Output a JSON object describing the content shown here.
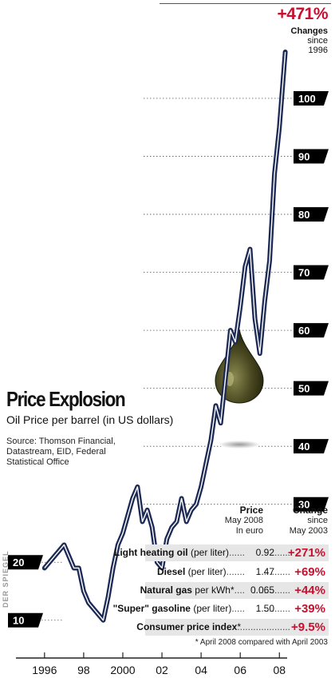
{
  "chart_data": {
    "type": "line",
    "title": "Price Explosion",
    "subtitle": "Oil Price per barrel (in US dollars)",
    "source": "Source: Thomson Financial, Datastream, EID, Federal Statistical Office",
    "x_tick_labels": [
      "1996",
      "98",
      "2000",
      "02",
      "04",
      "06",
      "08"
    ],
    "x_tick_values": [
      1996,
      1998,
      2000,
      2002,
      2004,
      2006,
      2008
    ],
    "xlim": [
      1995.6,
      2008.6
    ],
    "y_tick_values": [
      10,
      20,
      30,
      40,
      50,
      60,
      70,
      80,
      90,
      100
    ],
    "y_tick_labels": [
      "10",
      "20",
      "30",
      "40",
      "50",
      "60",
      "70",
      "80",
      "90",
      "100"
    ],
    "ylim": [
      5,
      112
    ],
    "series": [
      {
        "x": [
          1996.0,
          1996.25,
          1996.5,
          1996.75,
          1997.0,
          1997.25,
          1997.5,
          1997.75,
          1998.0,
          1998.25,
          1998.5,
          1998.75,
          1999.0,
          1999.25,
          1999.5,
          1999.75,
          2000.0,
          2000.25,
          2000.5,
          2000.75,
          2001.0,
          2001.25,
          2001.5,
          2001.75,
          2002.0,
          2002.25,
          2002.5,
          2002.75,
          2003.0,
          2003.25,
          2003.5,
          2003.75,
          2004.0,
          2004.25,
          2004.5,
          2004.75,
          2005.0,
          2005.25,
          2005.5,
          2005.75,
          2006.0,
          2006.25,
          2006.5,
          2006.75,
          2007.0,
          2007.25,
          2007.5,
          2007.75,
          2008.0,
          2008.3
        ],
        "values": [
          19,
          20,
          21,
          22,
          23,
          21,
          19,
          19,
          15,
          13,
          12,
          11,
          10,
          14,
          19,
          23,
          25,
          28,
          31,
          33,
          27,
          29,
          26,
          20,
          19,
          24,
          26,
          27,
          31,
          27,
          29,
          30,
          33,
          37,
          41,
          47,
          44,
          52,
          60,
          58,
          64,
          71,
          74,
          62,
          56,
          65,
          72,
          87,
          95,
          108
        ]
      }
    ],
    "annotation": {
      "value": "+471%",
      "label_bold": "Changes",
      "label_rest": "since 1996"
    }
  },
  "table": {
    "headers": {
      "price": {
        "title": "Price",
        "line1": "May 2008",
        "line2": "In euro"
      },
      "change": {
        "title": "Change",
        "line1": "since",
        "line2": "May 2003"
      }
    },
    "rows": [
      {
        "name": "Light heating oil",
        "unit": " (per liter)",
        "dots": "......",
        "price": "0.92",
        "dots2": "........",
        "change": "+271%"
      },
      {
        "name": "Diesel",
        "unit": " (per liter)",
        "dots": ".......",
        "price": "1.47",
        "dots2": "............",
        "change": "+69%"
      },
      {
        "name": "Natural gas",
        "unit": " per kWh*",
        "dots": "....",
        "price": "0.065",
        "dots2": "..............",
        "change": "+44%"
      },
      {
        "name": "\"Super\" gasoline",
        "unit": " (per liter)",
        "dots": ".....",
        "price": "1.50",
        "dots2": "............",
        "change": "+39%"
      },
      {
        "name": "Consumer price index",
        "unit": "*",
        "dots": "",
        "price": "",
        "dots2": "...........................",
        "change": "+9.5%"
      }
    ],
    "footnote": "* April 2008 compared with April 2003"
  },
  "watermark": "DER SPIEGEL",
  "colors": {
    "line": "#1d2a55",
    "accent": "#c8102e",
    "drop": "#3a3c1c"
  }
}
